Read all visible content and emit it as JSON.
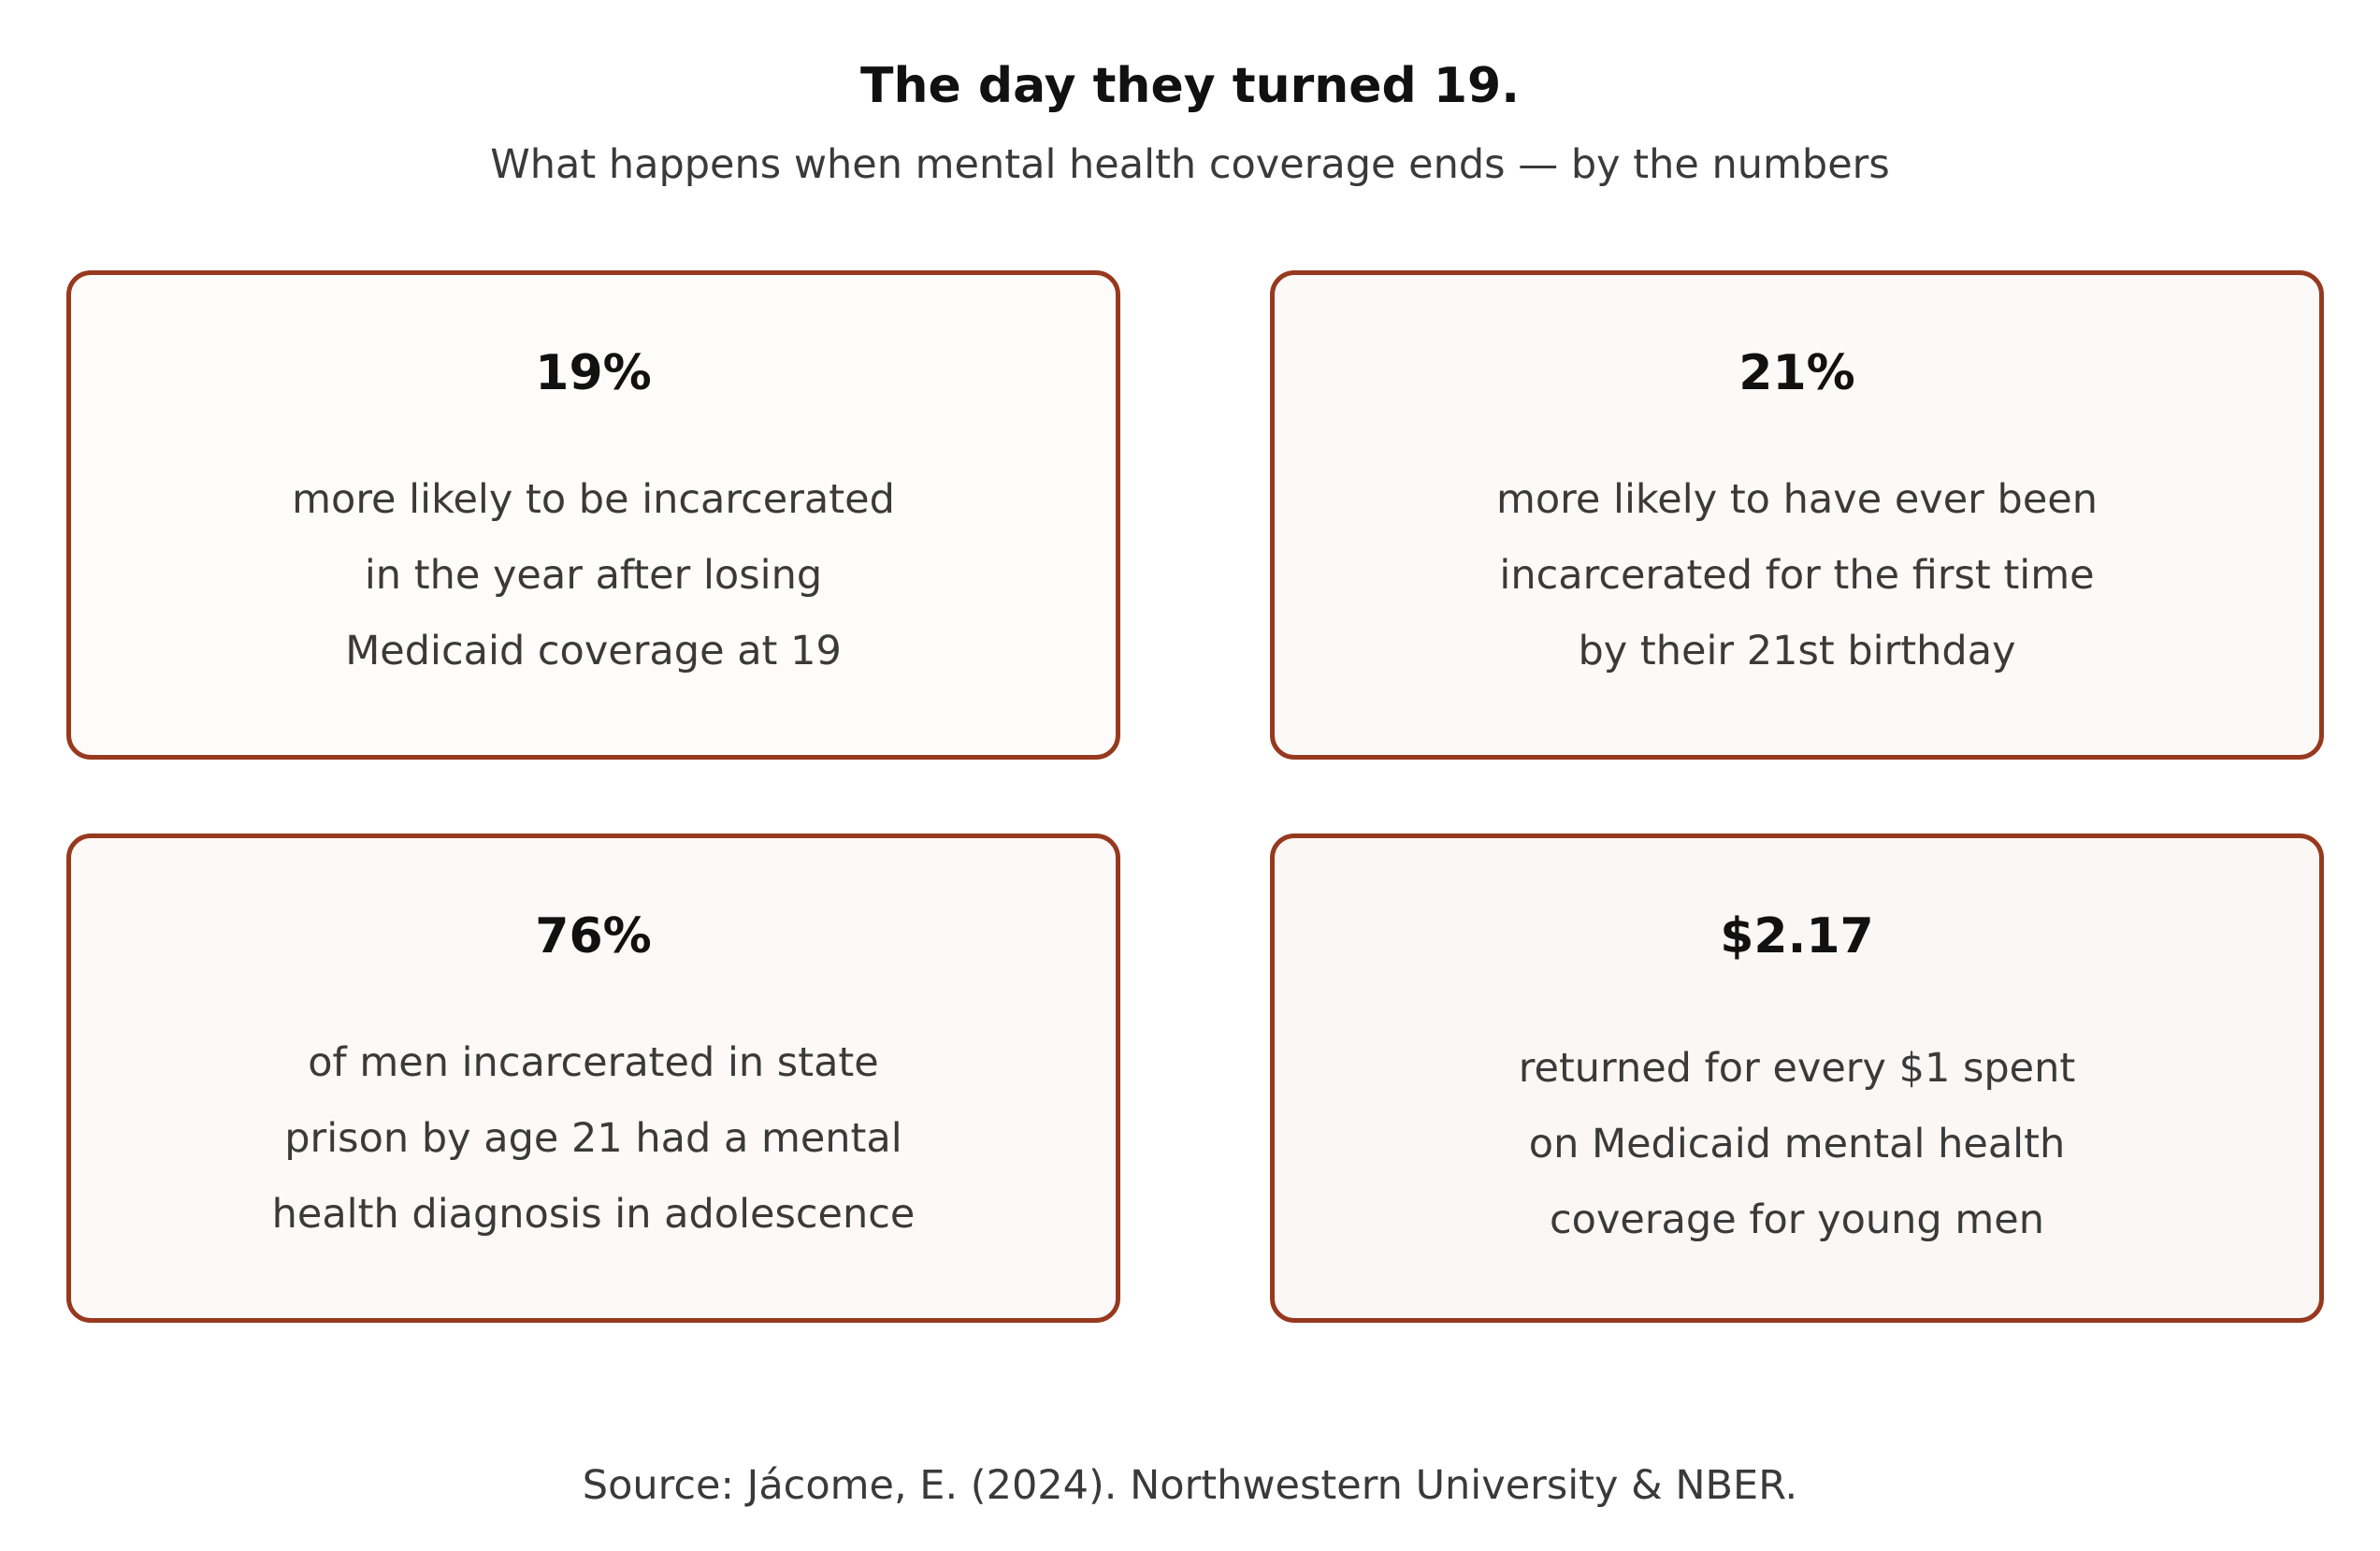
{
  "header": {
    "title": "The day they turned 19.",
    "subtitle": "What happens when mental health coverage ends — by the numbers"
  },
  "cards": [
    {
      "stat": "19%",
      "lines": [
        "more likely to be incarcerated",
        "in the year after losing",
        "Medicaid coverage at 19"
      ]
    },
    {
      "stat": "21%",
      "lines": [
        "more likely to have ever been",
        "incarcerated for the first time",
        "by their 21st birthday"
      ]
    },
    {
      "stat": "76%",
      "lines": [
        "of men incarcerated in state",
        "prison by age 21 had a mental",
        "health diagnosis in adolescence"
      ]
    },
    {
      "stat": "$2.17",
      "lines": [
        "returned for every $1 spent",
        "on Medicaid mental health",
        "coverage for young men"
      ]
    }
  ],
  "footer": {
    "source": "Source: Jácome, E. (2024). Northwestern University & NBER."
  },
  "colors": {
    "card_border": "#97391f",
    "title_text": "#111111",
    "body_text": "#3a3a3a"
  }
}
